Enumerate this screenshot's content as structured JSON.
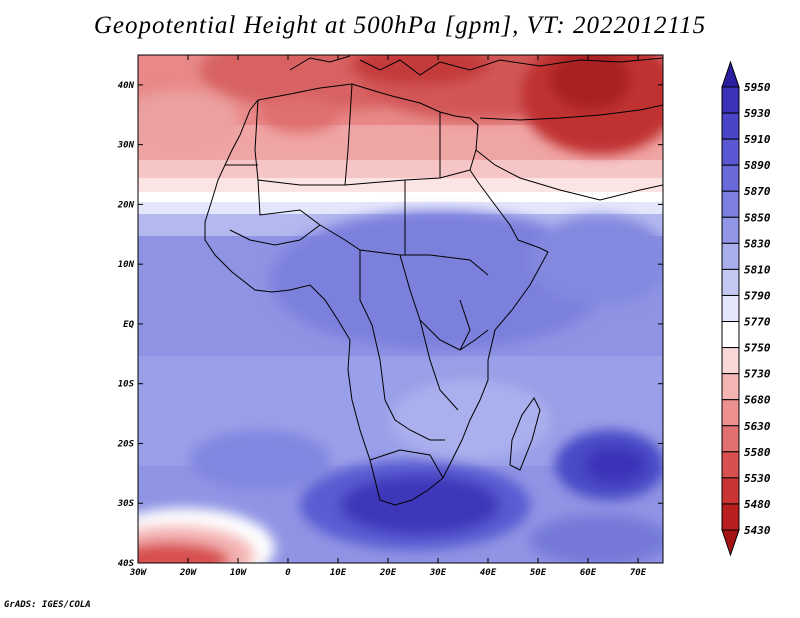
{
  "title": "Geopotential Height at 500hPa [gpm], VT: 2022012115",
  "credit": "GrADS: IGES/COLA",
  "map": {
    "lat_labels": [
      "40N",
      "30N",
      "20N",
      "10N",
      "EQ",
      "10S",
      "20S",
      "30S",
      "40S"
    ],
    "lon_labels": [
      "30W",
      "20W",
      "10W",
      "0",
      "10E",
      "20E",
      "30E",
      "40E",
      "50E",
      "60E",
      "70E"
    ]
  },
  "colorbar": {
    "levels": [
      "5950",
      "5930",
      "5910",
      "5890",
      "5870",
      "5850",
      "5830",
      "5810",
      "5790",
      "5770",
      "5750",
      "5730",
      "5680",
      "5630",
      "5580",
      "5530",
      "5480",
      "5430"
    ],
    "colors": [
      "#2b1e9e",
      "#3a32b8",
      "#4a45c6",
      "#5a58d2",
      "#6a69da",
      "#7c7ee0",
      "#9196e6",
      "#a9aeec",
      "#c3c8f3",
      "#e4e6fb",
      "#ffffff",
      "#fad7d7",
      "#f4b4b4",
      "#ec9090",
      "#e37070",
      "#d85050",
      "#cb3434",
      "#b82020",
      "#a41414"
    ]
  }
}
